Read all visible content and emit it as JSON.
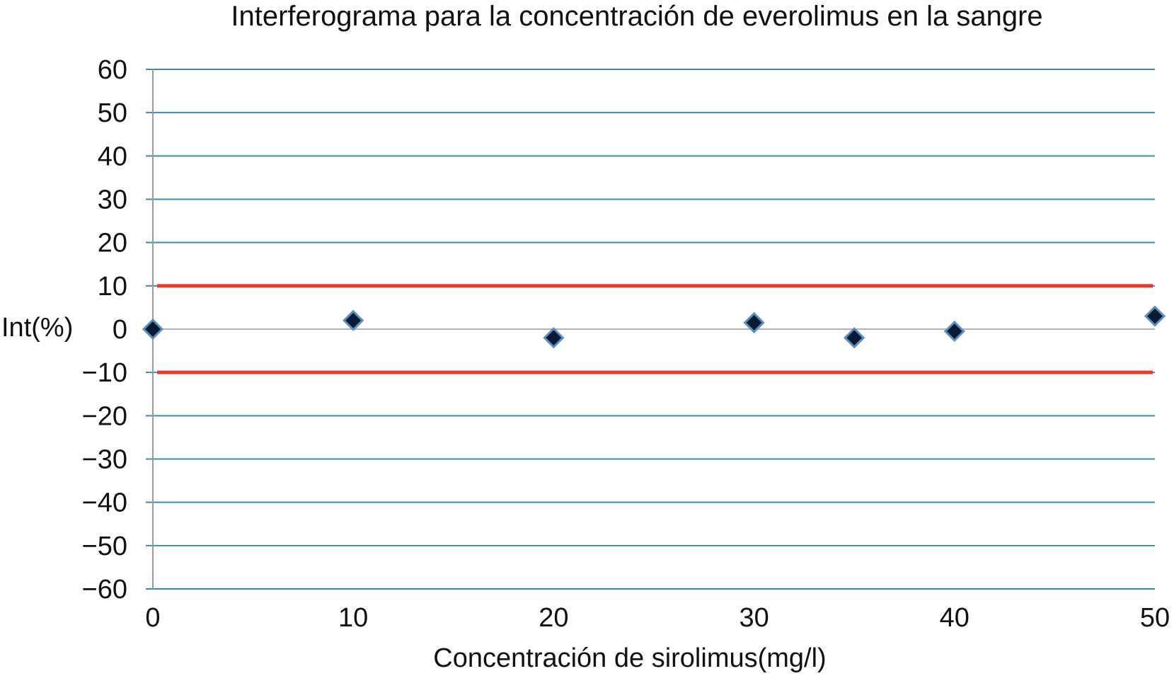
{
  "chart_data": {
    "type": "scatter",
    "title": "Interferograma para la concentración de everolimus en la sangre",
    "xlabel": "Concentración de sirolimus(mg/l)",
    "ylabel": "Int(%)",
    "xlim": [
      0,
      50
    ],
    "ylim": [
      -60,
      60
    ],
    "x_ticks": [
      "0",
      "10",
      "20",
      "30",
      "40",
      "50"
    ],
    "y_ticks": [
      "60",
      "50",
      "40",
      "30",
      "20",
      "10",
      "0",
      "−10",
      "−20",
      "−30",
      "−40",
      "−50",
      "−60"
    ],
    "grid": true,
    "series": [
      {
        "marker": "diamond",
        "color": "#0b1a33",
        "points": [
          {
            "x": 0,
            "y": 0
          },
          {
            "x": 10,
            "y": 2
          },
          {
            "x": 20,
            "y": -2
          },
          {
            "x": 30,
            "y": 1.5
          },
          {
            "x": 35,
            "y": -2
          },
          {
            "x": 40,
            "y": -0.5
          },
          {
            "x": 50,
            "y": 3
          }
        ]
      }
    ],
    "reference_lines": [
      {
        "y": 10,
        "color": "#e83a2c"
      },
      {
        "y": -10,
        "color": "#e83a2c"
      }
    ],
    "colors": {
      "grid": "#3a8fa8",
      "zero_line": "#999999",
      "axis": "#9a9a9a",
      "marker_outline": "#5b8fc2"
    }
  }
}
